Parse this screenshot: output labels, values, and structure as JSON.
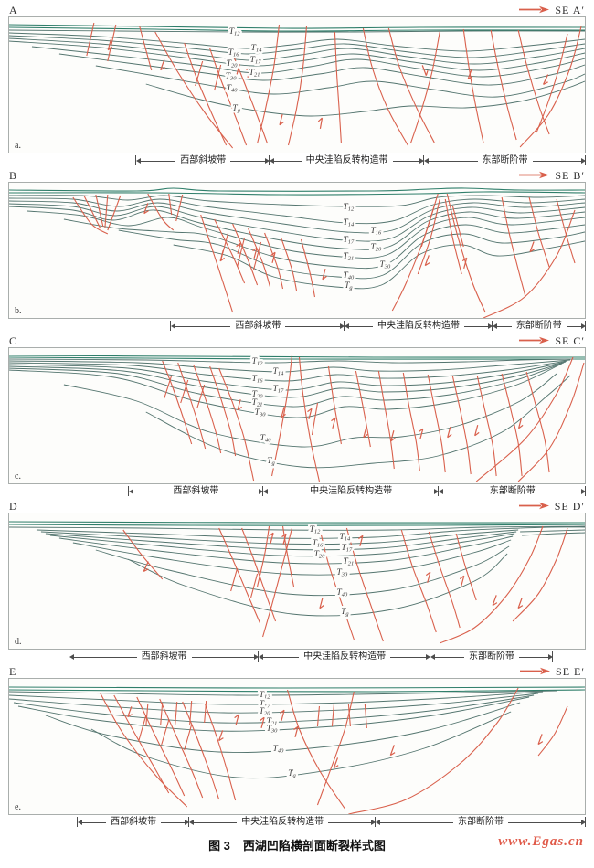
{
  "figure": {
    "caption_prefix": "图 3",
    "caption_title": "西湖凹陷横剖面断裂样式图",
    "watermark": "www.Egas.cn",
    "colors": {
      "fault_red": "#d9604c",
      "horizon_teal": "#54756f",
      "surface_green": "#2f7e6a",
      "bracket_gray": "#4d4d4d"
    }
  },
  "panels": [
    {
      "id": "A",
      "letter": "A",
      "se_label": "SE A′",
      "sub_label": "a.",
      "zones": [
        "西部斜坡带",
        "中央洼陷反转构造带",
        "东部断阶带"
      ],
      "horizons": [
        "T12",
        "T14",
        "T16",
        "T17",
        "T20",
        "T21",
        "T30",
        "T40",
        "Tg"
      ]
    },
    {
      "id": "B",
      "letter": "B",
      "se_label": "SE B′",
      "sub_label": "b.",
      "zones": [
        "西部斜坡带",
        "中央洼陷反转构造带",
        "东部断阶带"
      ],
      "horizons": [
        "T12",
        "T14",
        "T16",
        "T17",
        "T20",
        "T21",
        "T30",
        "T40",
        "Tg"
      ]
    },
    {
      "id": "C",
      "letter": "C",
      "se_label": "SE C′",
      "sub_label": "c.",
      "zones": [
        "西部斜坡带",
        "中央洼陷反转构造带",
        "东部断阶带"
      ],
      "horizons": [
        "T12",
        "T14",
        "T16",
        "T17",
        "T20",
        "T21",
        "T30",
        "T40",
        "Tg"
      ]
    },
    {
      "id": "D",
      "letter": "D",
      "se_label": "SE D′",
      "sub_label": "d.",
      "zones": [
        "西部斜坡带",
        "中央洼陷反转构造带",
        "东部断阶带"
      ],
      "horizons": [
        "T12",
        "T14",
        "T16",
        "T17",
        "T20",
        "T21",
        "T30",
        "T40",
        "Tg"
      ]
    },
    {
      "id": "E",
      "letter": "E",
      "se_label": "SE E′",
      "sub_label": "e.",
      "zones": [
        "西部斜坡带",
        "中央洼陷反转构造带",
        "东部断阶带"
      ],
      "horizons": [
        "T12",
        "T17",
        "T20",
        "T21",
        "T30",
        "T40",
        "Tg"
      ]
    }
  ]
}
